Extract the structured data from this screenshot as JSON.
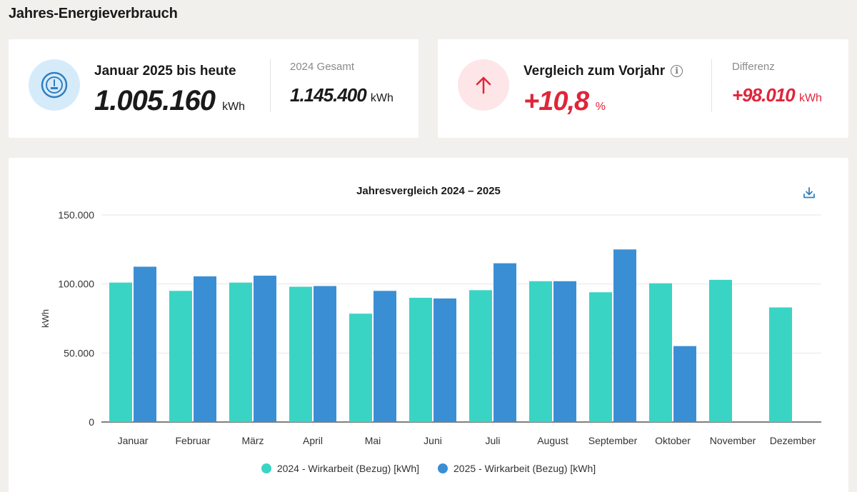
{
  "page": {
    "title": "Jahres-Energieverbrauch"
  },
  "ytd_card": {
    "label": "Januar 2025 bis heute",
    "value": "1.005.160",
    "unit": "kWh",
    "prev_label": "2024 Gesamt",
    "prev_value": "1.145.400",
    "prev_unit": "kWh"
  },
  "compare_card": {
    "label": "Vergleich zum Vorjahr",
    "info_symbol": "i",
    "value": "+10,8",
    "unit": "%",
    "diff_label": "Differenz",
    "diff_value": "+98.010",
    "diff_unit": "kWh"
  },
  "chart": {
    "title": "Jahresvergleich 2024 – 2025",
    "download_icon": "download-icon",
    "legend": [
      {
        "label": "2024 - Wirkarbeit (Bezug) [kWh]",
        "color": "#3ad4c4"
      },
      {
        "label": "2025 - Wirkarbeit (Bezug) [kWh]",
        "color": "#3a8fd4"
      }
    ]
  },
  "colors": {
    "accent_blue": "#3a8fd4",
    "accent_teal": "#3ad4c4",
    "negative_red": "#e0253a"
  },
  "chart_data": {
    "type": "bar",
    "title": "Jahresvergleich 2024 – 2025",
    "xlabel": "",
    "ylabel": "kWh",
    "ylim": [
      0,
      150000
    ],
    "yticks": [
      0,
      50000,
      100000,
      150000
    ],
    "ytick_labels": [
      "0",
      "50.000",
      "100.000",
      "150.000"
    ],
    "categories": [
      "Januar",
      "Februar",
      "März",
      "April",
      "Mai",
      "Juni",
      "Juli",
      "August",
      "September",
      "Oktober",
      "November",
      "Dezember"
    ],
    "series": [
      {
        "name": "2024 - Wirkarbeit (Bezug) [kWh]",
        "color": "#3ad4c4",
        "values": [
          101000,
          95000,
          101000,
          98000,
          78500,
          90000,
          95500,
          102000,
          94000,
          100500,
          103000,
          83000
        ]
      },
      {
        "name": "2025 - Wirkarbeit (Bezug) [kWh]",
        "color": "#3a8fd4",
        "values": [
          112500,
          105500,
          106000,
          98500,
          95000,
          89500,
          115000,
          102000,
          125000,
          55000,
          null,
          null
        ]
      }
    ],
    "legend": "bottom-center",
    "grid": true
  }
}
